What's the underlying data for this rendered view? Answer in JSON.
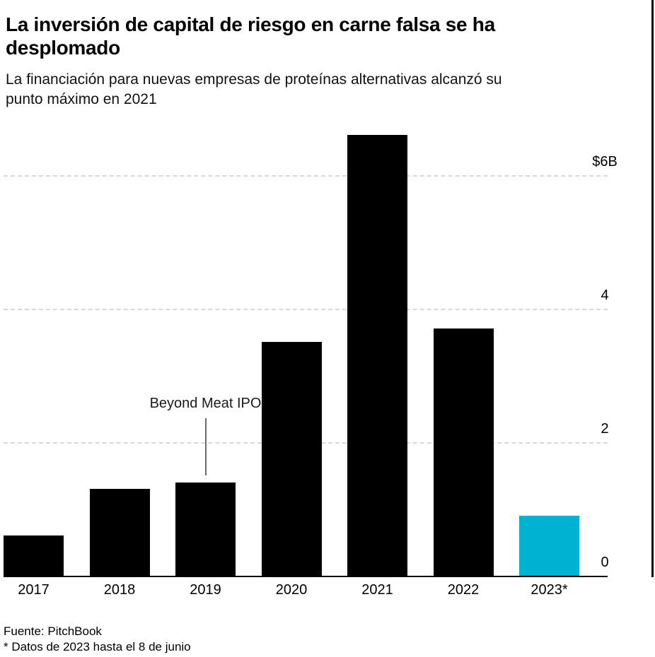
{
  "header": {
    "title_lines": [
      "La inversión de capital de riesgo en carne falsa se ha",
      "desplomado"
    ],
    "subtitle_lines": [
      "La financiación para nuevas empresas de proteínas alternativas alcanzó su",
      "punto máximo en 2021"
    ]
  },
  "footer": {
    "source": "Fuente: PitchBook",
    "note": "* Datos de 2023 hasta el 8 de junio"
  },
  "colors": {
    "bar": "#000000",
    "highlight": "#00b2d2",
    "gridline": "#d9d9d9",
    "axis": "#000000",
    "annotation_line": "#6b6b6b",
    "right_border": "#000000"
  },
  "chart_data": {
    "type": "bar",
    "title": "La inversión de capital de riesgo en carne falsa se ha desplomado",
    "subtitle": "La financiación para nuevas empresas de proteínas alternativas alcanzó su punto máximo en 2021",
    "categories": [
      "2017",
      "2018",
      "2019",
      "2020",
      "2021",
      "2022",
      "2023*"
    ],
    "values": [
      0.6,
      1.3,
      1.4,
      3.5,
      6.6,
      3.7,
      0.9
    ],
    "value_unit": "billions of USD",
    "xlabel": "",
    "ylabel": "",
    "ylim": [
      0,
      7
    ],
    "yticks": [
      {
        "value": 6,
        "label": "$6B"
      },
      {
        "value": 4,
        "label": "4"
      },
      {
        "value": 2,
        "label": "2"
      },
      {
        "value": 0,
        "label": "0"
      }
    ],
    "grid": "horizontal-dashed",
    "legend": "none",
    "highlight_index": 6,
    "annotation": {
      "text": "Beyond Meat IPO",
      "category": "2019"
    }
  }
}
